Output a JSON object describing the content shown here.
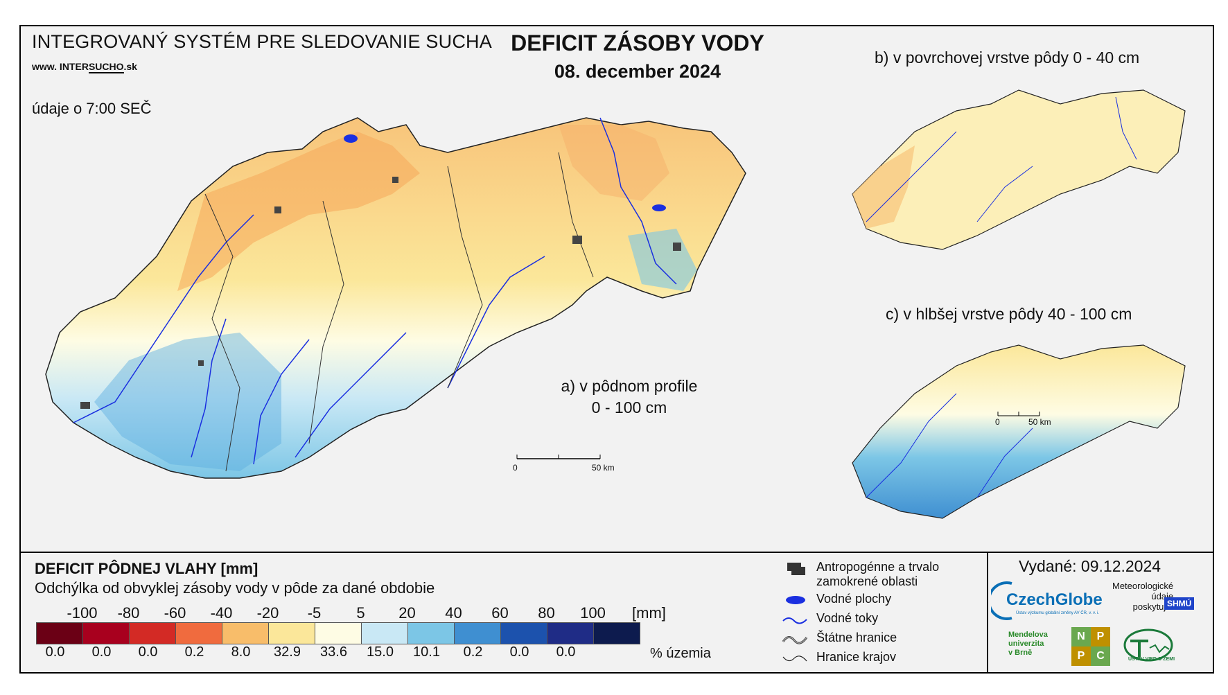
{
  "header": {
    "system_title": "INTEGROVANÝ SYSTÉM PRE SLEDOVANIE SUCHA",
    "website_prefix": "www. INTER",
    "website_highlight": "SUCHO",
    "website_suffix": ".sk",
    "time_info": "údaje o 7:00 SEČ",
    "main_title": "DEFICIT ZÁSOBY VODY",
    "main_date": "08. december 2024"
  },
  "maps": {
    "a_line1": "a) v pôdnom profile",
    "a_line2": "0 - 100 cm",
    "b_label": "b) v povrchovej vrstve pôdy 0 - 40 cm",
    "c_label": "c) v hlbšej vrstve pôdy 40 - 100 cm",
    "scale_zero": "0",
    "scale_end": "50 km"
  },
  "legend": {
    "title": "DEFICIT PÔDNEJ VLAHY [mm]",
    "subtitle": "Odchýlka od obvyklej zásoby vody v pôde za dané obdobie",
    "thresholds": [
      "-100",
      "-80",
      "-60",
      "-40",
      "-20",
      "-5",
      "5",
      "20",
      "40",
      "60",
      "80",
      "100"
    ],
    "unit": "[mm]",
    "colors": [
      "#6b0015",
      "#a8001e",
      "#d32a25",
      "#f06b3e",
      "#f8bd6a",
      "#fbe79a",
      "#fefce4",
      "#c9e8f5",
      "#7cc6e6",
      "#3f8fd1",
      "#1c52ad",
      "#1f2c86",
      "#0d1b4e"
    ],
    "percentages": [
      "0.0",
      "0.0",
      "0.0",
      "0.2",
      "8.0",
      "32.9",
      "33.6",
      "15.0",
      "10.1",
      "0.2",
      "0.0",
      "0.0"
    ],
    "percent_label": "% územia"
  },
  "map_legend": {
    "urban": "Antropogénne a trvalo zamokrené oblasti",
    "water_bodies": "Vodné plochy",
    "rivers": "Vodné toky",
    "state_border": "Štátne hranice",
    "region_border": "Hranice krajov"
  },
  "footer": {
    "issued": "Vydané: 09.12.2024",
    "czechglobe": "CzechGlobe",
    "czechglobe_sub": "Ústav výzkumu globální změny AV ČR, v. v. i.",
    "meteo_line1": "Meteorologické",
    "meteo_line2": "údaje",
    "meteo_line3": "poskytuje:",
    "shmu": "SHMÚ",
    "mendelu_line1": "Mendelova",
    "mendelu_line2": "univerzita",
    "mendelu_line3": "v Brně",
    "nppc": [
      "N",
      "P",
      "P",
      "C"
    ],
    "uvz": "ÚSTAV VIED O ZEMI"
  }
}
